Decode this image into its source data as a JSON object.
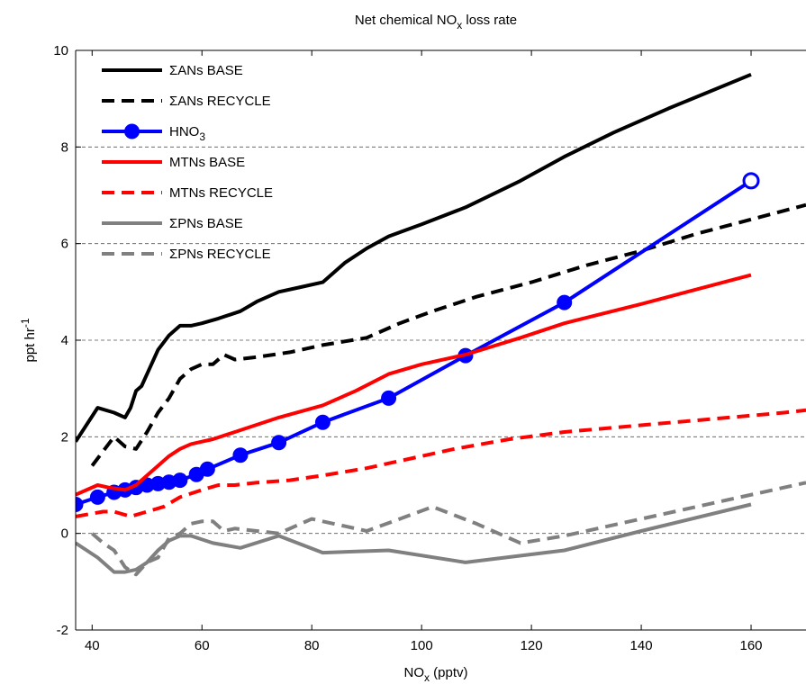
{
  "chart_data": {
    "type": "line",
    "title_main": "Net chemical NO",
    "title_sub": "x",
    "title_tail": " loss rate",
    "xlabel_main": "NO",
    "xlabel_sub": "x",
    "xlabel_tail": " (pptv)",
    "ylabel_main": "ppt hr",
    "ylabel_sup": "-1",
    "xlim": [
      37,
      170
    ],
    "ylim": [
      -2,
      10
    ],
    "xticks": [
      "40",
      "60",
      "80",
      "100",
      "120",
      "140",
      "160"
    ],
    "xtick_values": [
      40,
      60,
      80,
      100,
      120,
      140,
      160
    ],
    "yticks": [
      "-2",
      "0",
      "2",
      "4",
      "6",
      "8",
      "10"
    ],
    "ytick_values": [
      -2,
      0,
      2,
      4,
      6,
      8,
      10
    ],
    "grid": "dashed horizontal at y ticks",
    "legend_position": "top-left",
    "series": [
      {
        "name": "ΣANs BASE",
        "color": "#000000",
        "style": "solid",
        "marker": "none",
        "x": [
          37,
          41,
          44,
          46,
          47,
          48,
          49,
          50,
          52,
          54,
          56,
          58,
          60,
          63,
          67,
          70,
          74,
          78,
          82,
          86,
          90,
          94,
          100,
          108,
          118,
          126,
          135,
          145,
          160
        ],
        "y": [
          1.9,
          2.6,
          2.5,
          2.4,
          2.6,
          2.95,
          3.05,
          3.3,
          3.8,
          4.1,
          4.3,
          4.3,
          4.35,
          4.45,
          4.6,
          4.8,
          5.0,
          5.1,
          5.2,
          5.6,
          5.9,
          6.15,
          6.4,
          6.75,
          7.3,
          7.8,
          8.3,
          8.8,
          9.5
        ]
      },
      {
        "name": "ΣANs RECYCLE",
        "color": "#000000",
        "style": "dashed",
        "marker": "none",
        "x": [
          40,
          44,
          46,
          48,
          50,
          52,
          54,
          56,
          58,
          60,
          62,
          64,
          66,
          70,
          76,
          82,
          90,
          96,
          102,
          110,
          120,
          130,
          140,
          150,
          160,
          170
        ],
        "y": [
          1.4,
          2.0,
          1.8,
          1.75,
          2.1,
          2.5,
          2.8,
          3.2,
          3.4,
          3.5,
          3.5,
          3.7,
          3.6,
          3.65,
          3.75,
          3.9,
          4.05,
          4.35,
          4.6,
          4.9,
          5.2,
          5.55,
          5.85,
          6.2,
          6.5,
          6.8
        ]
      },
      {
        "name": "HNO3",
        "legend_main": "HNO",
        "legend_sub": "3",
        "color": "#0000ff",
        "style": "solid",
        "marker": "circle",
        "x": [
          37,
          41,
          44,
          46,
          48,
          50,
          52,
          54,
          56,
          59,
          61,
          67,
          74,
          82,
          94,
          108,
          126,
          160
        ],
        "y": [
          0.6,
          0.75,
          0.85,
          0.9,
          0.95,
          1.0,
          1.03,
          1.06,
          1.1,
          1.22,
          1.33,
          1.62,
          1.88,
          2.3,
          2.8,
          3.68,
          4.78,
          7.3
        ]
      },
      {
        "name": "MTNs BASE",
        "color": "#ff0000",
        "style": "solid",
        "marker": "none",
        "x": [
          37,
          41,
          43,
          46,
          48,
          50,
          52,
          54,
          56,
          58,
          60,
          62,
          66,
          74,
          82,
          88,
          94,
          100,
          108,
          118,
          126,
          140,
          160
        ],
        "y": [
          0.8,
          1.0,
          0.95,
          0.9,
          1.0,
          1.2,
          1.4,
          1.6,
          1.75,
          1.85,
          1.9,
          1.95,
          2.1,
          2.4,
          2.65,
          2.95,
          3.3,
          3.5,
          3.7,
          4.05,
          4.35,
          4.75,
          5.35
        ]
      },
      {
        "name": "MTNs RECYCLE",
        "color": "#ff0000",
        "style": "dashed",
        "marker": "none",
        "x": [
          37,
          42,
          44,
          47,
          50,
          53,
          56,
          60,
          63,
          66,
          70,
          76,
          82,
          90,
          98,
          106,
          116,
          126,
          136,
          146,
          156,
          166,
          170
        ],
        "y": [
          0.35,
          0.45,
          0.45,
          0.35,
          0.45,
          0.55,
          0.75,
          0.9,
          1.0,
          1.0,
          1.05,
          1.1,
          1.2,
          1.35,
          1.55,
          1.75,
          1.95,
          2.1,
          2.2,
          2.3,
          2.4,
          2.5,
          2.55
        ]
      },
      {
        "name": "ΣPNs BASE",
        "color": "#808080",
        "style": "solid",
        "marker": "none",
        "x": [
          37,
          41,
          44,
          46,
          48,
          50,
          52,
          54,
          56,
          58,
          62,
          67,
          74,
          82,
          94,
          108,
          126,
          140,
          160
        ],
        "y": [
          -0.2,
          -0.5,
          -0.8,
          -0.8,
          -0.75,
          -0.6,
          -0.35,
          -0.15,
          -0.05,
          -0.05,
          -0.2,
          -0.3,
          -0.05,
          -0.4,
          -0.35,
          -0.6,
          -0.35,
          0.05,
          0.6
        ]
      },
      {
        "name": "ΣPNs RECYCLE",
        "color": "#808080",
        "style": "dashed",
        "marker": "none",
        "x": [
          40,
          42,
          44,
          46,
          48,
          50,
          52,
          54,
          56,
          58,
          60,
          62,
          64,
          66,
          70,
          74,
          80,
          86,
          90,
          96,
          102,
          110,
          118,
          126,
          136,
          146,
          156,
          166,
          170
        ],
        "y": [
          0.0,
          -0.2,
          -0.35,
          -0.7,
          -0.85,
          -0.6,
          -0.5,
          -0.1,
          0.0,
          0.2,
          0.25,
          0.25,
          0.05,
          0.1,
          0.05,
          0.0,
          0.3,
          0.15,
          0.05,
          0.3,
          0.55,
          0.2,
          -0.2,
          -0.05,
          0.2,
          0.45,
          0.7,
          0.95,
          1.05
        ]
      }
    ]
  }
}
